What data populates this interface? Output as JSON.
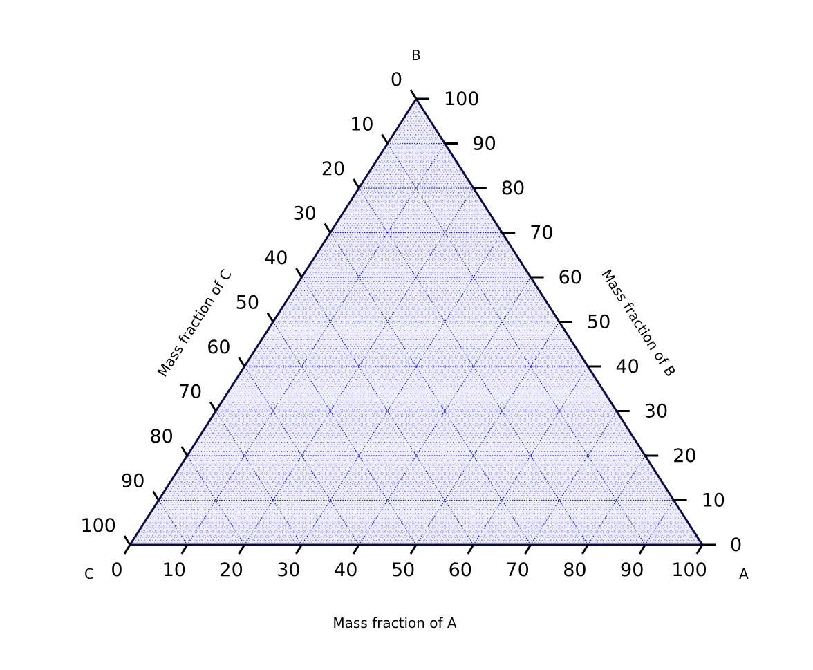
{
  "chart_data": {
    "type": "ternary",
    "corners": {
      "a": "A",
      "b": "B",
      "c": "C"
    },
    "axes": {
      "a": {
        "title": "Mass fraction of A",
        "range": [
          0,
          100
        ]
      },
      "b": {
        "title": "Mass fraction of B",
        "range": [
          0,
          100
        ]
      },
      "c": {
        "title": "Mass fraction of C",
        "range": [
          0,
          100
        ]
      }
    },
    "ticks": [
      0,
      10,
      20,
      30,
      40,
      50,
      60,
      70,
      80,
      90,
      100
    ],
    "tick_labels": [
      "0",
      "10",
      "20",
      "30",
      "40",
      "50",
      "60",
      "70",
      "80",
      "90",
      "100"
    ],
    "grid": true,
    "grid_color": "#0000cc",
    "border_color": "#0d0d40"
  }
}
